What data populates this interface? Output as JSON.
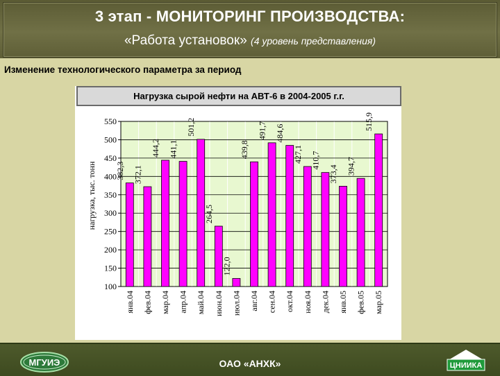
{
  "header": {
    "title": "3 этап - МОНИТОРИНГ ПРОИЗВОДСТВА:",
    "subtitle": "«Работа установок»",
    "subtitle_note": "(4 уровень представления)"
  },
  "section_heading": "Изменение технологического параметра за период",
  "footer": {
    "org": "ОАО «АНХК»",
    "logo_left": "МГУИЭ",
    "logo_right": "ЦНИИКА"
  },
  "colors": {
    "bar": "#ff00ff",
    "plot_bg": "#e8f8d0",
    "header_bg": "#6a6a40",
    "page_bg": "#d8d6a4"
  },
  "chart_data": {
    "type": "bar",
    "title": "Нагрузка сырой нефти  на АВТ-6 в 2004-2005 г.г.",
    "xlabel": "",
    "ylabel": "нагрузка, тыс. тонн",
    "ylim": [
      100,
      550
    ],
    "yticks": [
      100,
      150,
      200,
      250,
      300,
      350,
      400,
      450,
      500,
      550
    ],
    "grid": true,
    "categories": [
      "янв.04",
      "фев.04",
      "мар.04",
      "апр.04",
      "май.04",
      "июн.04",
      "июл.04",
      "авг.04",
      "сен.04",
      "окт.04",
      "ноя.04",
      "дек.04",
      "янв.05",
      "фев.05",
      "мар.05"
    ],
    "values": [
      382.3,
      372.1,
      444.2,
      441.1,
      501.2,
      264.5,
      122.0,
      439.8,
      491.7,
      484.6,
      427.1,
      410.7,
      373.4,
      394.7,
      515.9
    ],
    "value_labels": [
      "382,3",
      "372,1",
      "444,2",
      "441,1",
      "501,2",
      "264,5",
      "122,0",
      "439,8",
      "491,7",
      "484,6",
      "427,1",
      "410,7",
      "373,4",
      "394,7",
      "515,9"
    ]
  }
}
